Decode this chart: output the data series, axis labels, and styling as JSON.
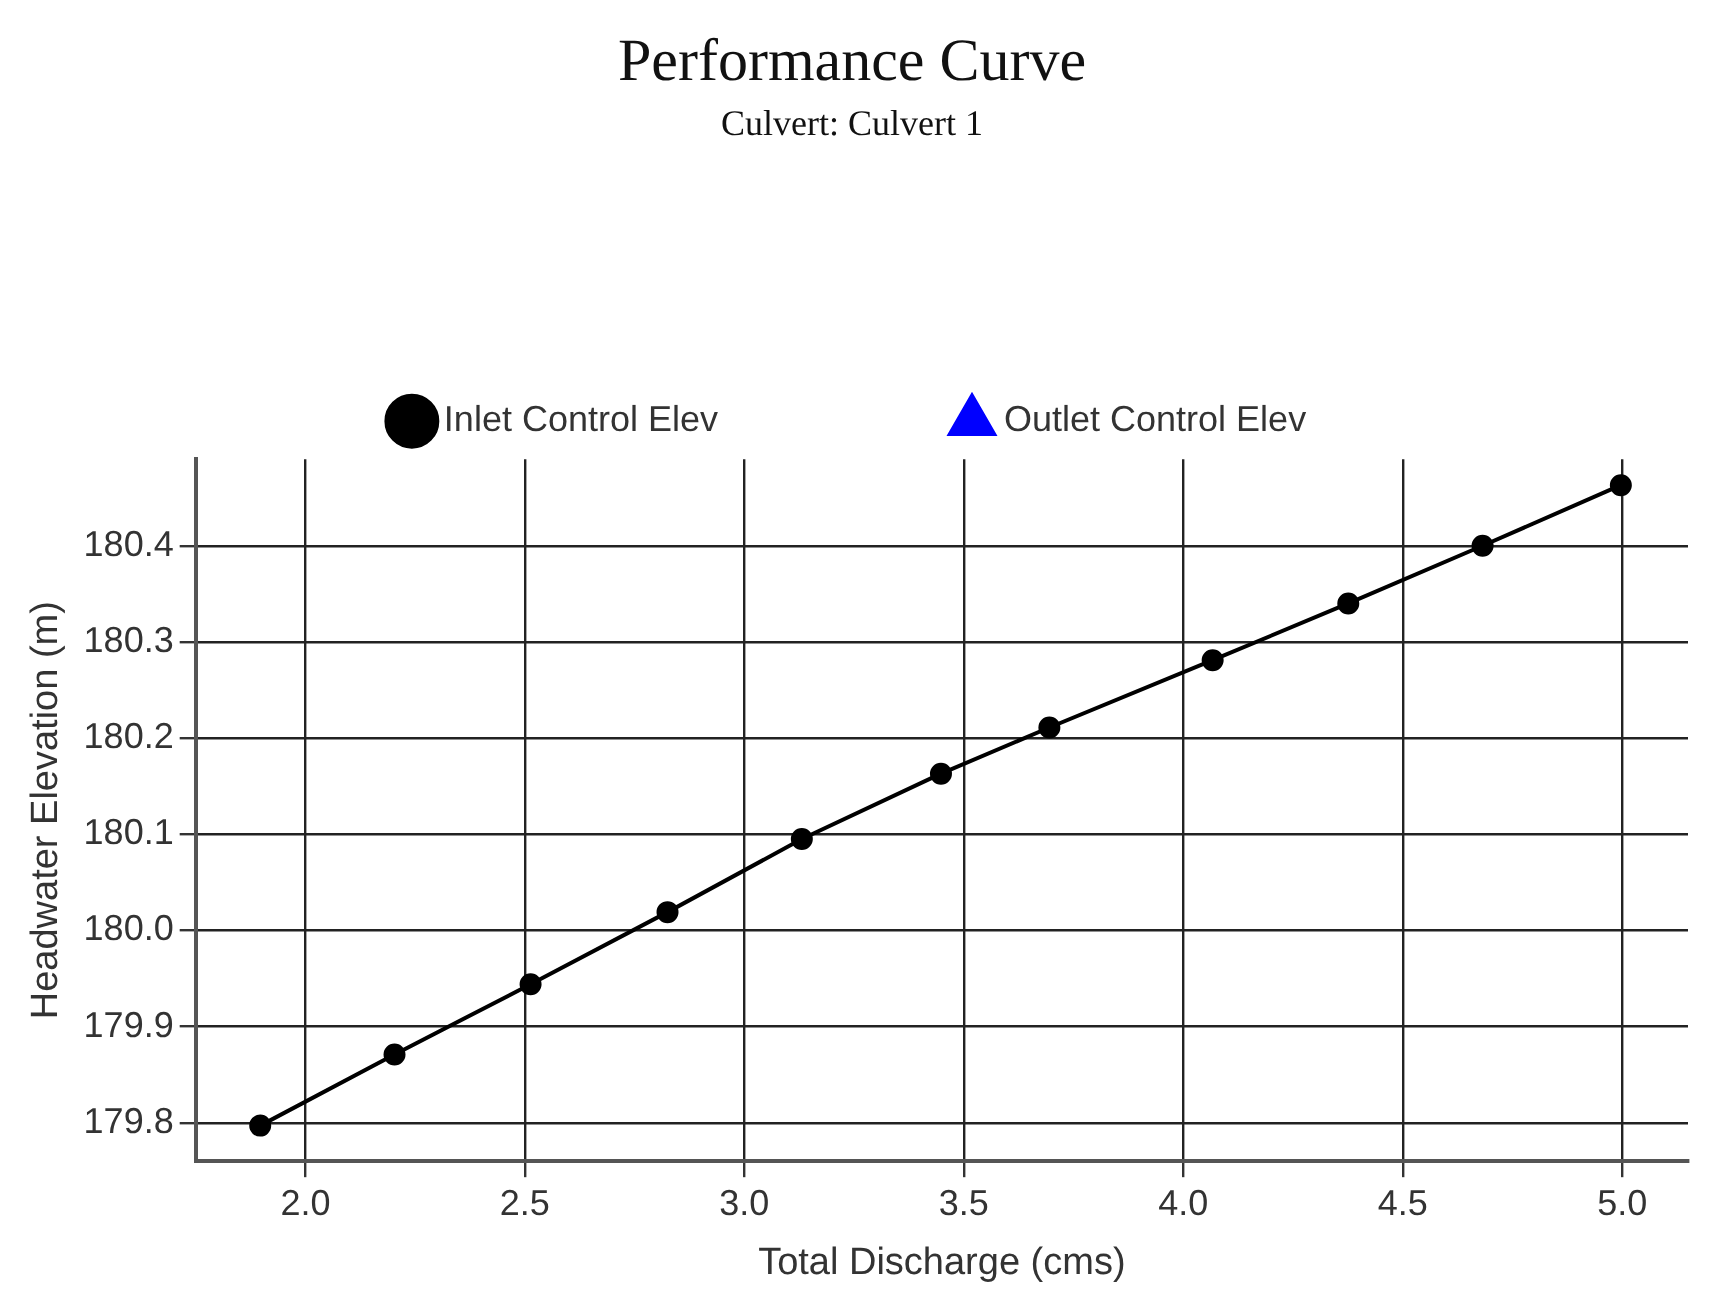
{
  "chart_data": {
    "type": "line",
    "title": "Performance Curve",
    "subtitle": "Culvert: Culvert 1",
    "xlabel": "Total Discharge (cms)",
    "ylabel": "Headwater Elevation (m)",
    "x": [
      1.897,
      2.203,
      2.513,
      2.825,
      3.131,
      3.448,
      3.695,
      4.067,
      4.376,
      4.682,
      4.997
    ],
    "series": [
      {
        "name": "Inlet Control Elev",
        "color": "#000000",
        "marker": "circle",
        "values": [
          179.797,
          179.871,
          179.944,
          180.019,
          180.095,
          180.163,
          180.211,
          180.281,
          180.34,
          180.4,
          180.463
        ]
      },
      {
        "name": "Outlet Control Elev",
        "color": "#0000ff",
        "type": "scatter",
        "marker": "triangle",
        "values": [
          null,
          null,
          null,
          null,
          null,
          null,
          null,
          null,
          null,
          null,
          null
        ]
      }
    ],
    "xlim": [
      1.75,
      5.15
    ],
    "ylim": [
      179.76,
      180.49
    ],
    "xticks": [
      {
        "value": 2,
        "label": "2.0"
      },
      {
        "value": 2.5,
        "label": "2.5"
      },
      {
        "value": 3,
        "label": "3.0"
      },
      {
        "value": 3.5,
        "label": "3.5"
      },
      {
        "value": 4,
        "label": "4.0"
      },
      {
        "value": 4.5,
        "label": "4.5"
      },
      {
        "value": 5,
        "label": "5.0"
      }
    ],
    "yticks": [
      {
        "value": 179.8,
        "label": "179.8"
      },
      {
        "value": 179.9,
        "label": "179.9"
      },
      {
        "value": 180,
        "label": "180.0"
      },
      {
        "value": 180.1,
        "label": "180.1"
      },
      {
        "value": 180.2,
        "label": "180.2"
      },
      {
        "value": 180.3,
        "label": "180.3"
      },
      {
        "value": 180.4,
        "label": "180.4"
      }
    ],
    "grid": true,
    "legend": "top",
    "line_style": "solid"
  }
}
